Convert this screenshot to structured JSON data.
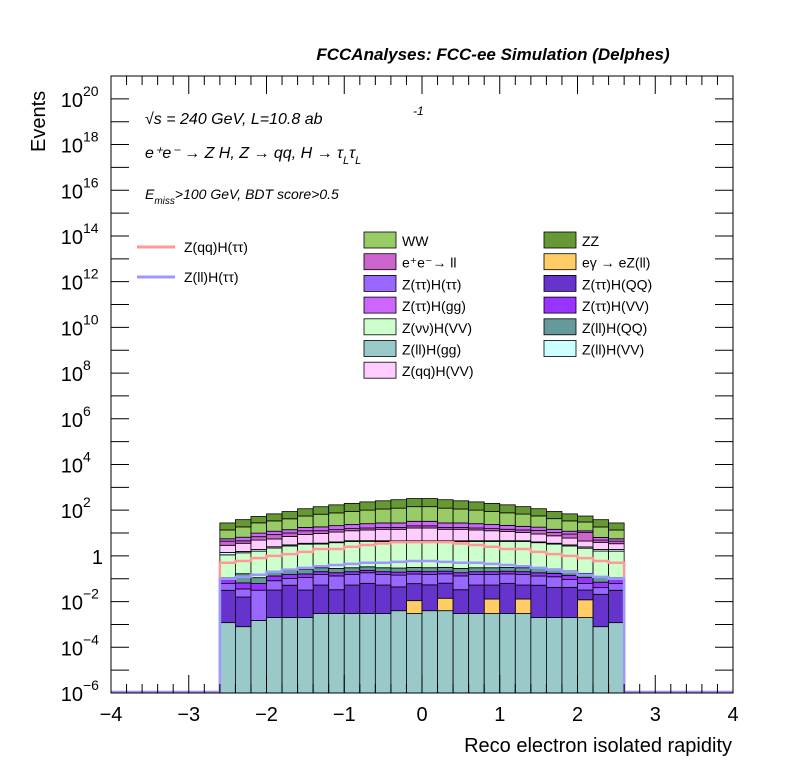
{
  "header": "FCCAnalyses: FCC-ee Simulation (Delphes)",
  "annotations": {
    "energy": "√s = 240 GeV, L=10.8 ab",
    "energy_sup": "-1",
    "process": "e⁺e⁻ → Z H, Z → qq, H → τ",
    "process_sub1": "L",
    "process_tau": "τ",
    "process_sub2": "L",
    "cuts_prefix": "E",
    "cuts_sub": "miss",
    "cuts_rest": ">100 GeV, BDT score>0.5"
  },
  "chart_data": {
    "type": "bar",
    "stacked": true,
    "log_y": true,
    "title": "FCCAnalyses: FCC-ee Simulation (Delphes)",
    "xlabel": "Reco electron isolated rapidity",
    "ylabel": "Events",
    "xlim": [
      -4,
      4
    ],
    "ylim": [
      1e-06,
      1e+21
    ],
    "x_ticks": [
      "−4",
      "−3",
      "−2",
      "−1",
      "0",
      "1",
      "2",
      "3",
      "4"
    ],
    "y_ticks": [
      {
        "base": "10",
        "exp": "−6"
      },
      {
        "base": "10",
        "exp": "−4"
      },
      {
        "base": "10",
        "exp": "−2"
      },
      {
        "base": "1",
        "exp": ""
      },
      {
        "base": "10",
        "exp": "2"
      },
      {
        "base": "10",
        "exp": "4"
      },
      {
        "base": "10",
        "exp": "6"
      },
      {
        "base": "10",
        "exp": "8"
      },
      {
        "base": "10",
        "exp": "10"
      },
      {
        "base": "10",
        "exp": "12"
      },
      {
        "base": "10",
        "exp": "14"
      },
      {
        "base": "10",
        "exp": "16"
      },
      {
        "base": "10",
        "exp": "18"
      },
      {
        "base": "10",
        "exp": "20"
      }
    ],
    "bin_edges": [
      -2.6,
      -2.4,
      -2.2,
      -2.0,
      -1.8,
      -1.6,
      -1.4,
      -1.2,
      -1.0,
      -0.8,
      -0.6,
      -0.4,
      -0.2,
      0.0,
      0.2,
      0.4,
      0.6,
      0.8,
      1.0,
      1.2,
      1.4,
      1.6,
      1.8,
      2.0,
      2.2,
      2.4,
      2.6
    ],
    "stack_order_bottom_to_top": [
      "Z(ll)H(gg)",
      "eγ → eZ(ll)",
      "Z(ττ)H(QQ)",
      "Z(ττ)H(ττ)",
      "Z(ττ)H(VV)",
      "Z(ll)H(QQ)",
      "Z(νν)H(VV)",
      "Z(ll)H(VV)",
      "Z(qq)H(VV)",
      "e⁺e⁻→ ll",
      "Z(ττ)H(gg)",
      "WW",
      "ZZ"
    ],
    "series": [
      {
        "name": "Z(ll)H(gg)",
        "color": "#99c9c9",
        "values": [
          0.0012,
          0.0008,
          0.0015,
          0.002,
          0.002,
          0.002,
          0.003,
          0.003,
          0.003,
          0.003,
          0.003,
          0.004,
          0.003,
          0.004,
          0.004,
          0.003,
          0.003,
          0.003,
          0.003,
          0.003,
          0.002,
          0.002,
          0.002,
          0.002,
          0.0008,
          0.0012
        ]
      },
      {
        "name": "eγ → eZ(ll)",
        "color": "#ffcc66",
        "values": [
          0,
          0,
          0,
          0,
          0,
          0,
          0,
          0,
          0,
          0,
          0,
          0,
          0.008,
          0,
          0.01,
          0,
          0,
          0.01,
          0,
          0.01,
          0,
          0,
          0,
          0.01,
          0,
          0
        ]
      },
      {
        "name": "Z(ττ)H(QQ)",
        "color": "#6633cc",
        "values": [
          0.03,
          0.015,
          0,
          0.03,
          0.05,
          0.03,
          0.05,
          0.03,
          0.05,
          0.06,
          0.05,
          0.04,
          0.05,
          0.05,
          0.05,
          0.03,
          0.05,
          0.04,
          0.06,
          0.04,
          0.05,
          0.04,
          0.04,
          0.02,
          0.02,
          0.03
        ]
      },
      {
        "name": "Z(ττ)H(ττ)",
        "color": "#9966ff",
        "values": [
          0.03,
          0.02,
          0.03,
          0.05,
          0.05,
          0.08,
          0.1,
          0.1,
          0.1,
          0.12,
          0.1,
          0.1,
          0.1,
          0.1,
          0.1,
          0.1,
          0.1,
          0.1,
          0.1,
          0.1,
          0.08,
          0.08,
          0.05,
          0.03,
          0.02,
          0.03
        ]
      },
      {
        "name": "Z(ττ)H(VV)",
        "color": "#9933ff",
        "values": [
          0.05,
          0.03,
          0.03,
          0.05,
          0.05,
          0.05,
          0.05,
          0.05,
          0.05,
          0.05,
          0.05,
          0.05,
          0.05,
          0.05,
          0.05,
          0.05,
          0.05,
          0.05,
          0.05,
          0.05,
          0.05,
          0.05,
          0.05,
          0.05,
          0.03,
          0.05
        ]
      },
      {
        "name": "Z(ll)H(QQ)",
        "color": "#669999",
        "values": [
          0,
          0.1,
          0.05,
          0.08,
          0.08,
          0.1,
          0.1,
          0.1,
          0.1,
          0.1,
          0.1,
          0.1,
          0.1,
          0.1,
          0.1,
          0.1,
          0.1,
          0.1,
          0.1,
          0.1,
          0.1,
          0.1,
          0.08,
          0.06,
          0.05,
          0
        ]
      },
      {
        "name": "Z(νν)H(VV)",
        "color": "#ccffcc",
        "values": [
          1.0,
          1.2,
          1.5,
          2,
          2.5,
          3,
          3,
          3.5,
          4,
          4,
          4,
          4,
          4,
          4,
          4,
          4,
          4,
          4,
          4,
          4,
          3.5,
          3,
          2.5,
          2,
          1.5,
          1.5
        ]
      },
      {
        "name": "Z(ll)H(VV)",
        "color": "#ccffff",
        "values": [
          0.3,
          0.2,
          0.3,
          0.3,
          0.3,
          0.3,
          0.3,
          0.3,
          0.3,
          0.3,
          0.3,
          0.3,
          0.3,
          0.3,
          0.3,
          0.3,
          0.3,
          0.3,
          0.3,
          0.3,
          0.3,
          0.3,
          0.3,
          0.3,
          0.3,
          0.3
        ]
      },
      {
        "name": "Z(qq)H(VV)",
        "color": "#ffccff",
        "values": [
          1.5,
          2,
          3,
          3,
          4,
          5,
          6,
          7,
          8,
          9,
          10,
          10,
          12,
          12,
          10,
          10,
          9,
          8,
          7,
          6,
          5,
          4,
          3,
          2,
          2,
          1.5
        ]
      },
      {
        "name": "e⁺e⁻→ ll",
        "color": "#cc66cc",
        "values": [
          1.5,
          1,
          2,
          3,
          3,
          4,
          3,
          3,
          3,
          3,
          3,
          3,
          4,
          4,
          3,
          3,
          3,
          3,
          3,
          3,
          4,
          3,
          3,
          6,
          1,
          1
        ]
      },
      {
        "name": "Z(ττ)H(gg)",
        "color": "#cc66ff",
        "values": [
          1.2,
          2,
          3,
          3.5,
          4,
          5,
          6,
          7,
          8,
          9,
          10,
          10,
          12,
          12,
          10,
          10,
          9,
          8,
          7,
          6,
          5,
          4,
          3,
          2,
          1.5,
          1.2
        ]
      },
      {
        "name": "WW",
        "color": "#99cc66",
        "values": [
          8,
          12,
          18,
          22,
          28,
          38,
          48,
          55,
          65,
          75,
          85,
          95,
          110,
          110,
          95,
          85,
          75,
          65,
          55,
          48,
          38,
          28,
          22,
          18,
          12,
          8
        ]
      },
      {
        "name": "ZZ",
        "color": "#669933",
        "values": [
          14,
          20,
          25,
          35,
          45,
          60,
          75,
          95,
          110,
          130,
          145,
          165,
          180,
          180,
          165,
          145,
          130,
          110,
          95,
          75,
          60,
          45,
          35,
          25,
          20,
          14
        ]
      }
    ],
    "signal_lines": [
      {
        "name": "Z(qq)H(ττ)",
        "color": "#ff9999",
        "values": [
          0.5,
          0.6,
          0.8,
          1,
          1.2,
          1.5,
          2,
          2,
          2.5,
          3,
          3.5,
          4,
          4,
          4,
          4,
          3.5,
          3,
          2.5,
          2,
          2,
          1.5,
          1.2,
          1,
          0.8,
          0.6,
          0.5
        ]
      },
      {
        "name": "Z(ll)H(ττ)",
        "color": "#9999ff",
        "values": [
          0.1,
          0.12,
          0.15,
          0.2,
          0.25,
          0.3,
          0.35,
          0.4,
          0.45,
          0.5,
          0.5,
          0.55,
          0.6,
          0.6,
          0.55,
          0.5,
          0.5,
          0.45,
          0.4,
          0.35,
          0.3,
          0.25,
          0.2,
          0.15,
          0.12,
          0.1
        ]
      }
    ],
    "legend": {
      "signal": [
        "Z(qq)H(ττ)",
        "Z(ll)H(ττ)"
      ],
      "backgrounds": [
        "WW",
        "ZZ",
        "e⁺e⁻→ ll",
        "eγ → eZ(ll)",
        "Z(ττ)H(ττ)",
        "Z(ττ)H(QQ)",
        "Z(ττ)H(gg)",
        "Z(ττ)H(VV)",
        "Z(νν)H(VV)",
        "Z(ll)H(QQ)",
        "Z(ll)H(gg)",
        "Z(ll)H(VV)",
        "Z(qq)H(VV)"
      ]
    }
  }
}
